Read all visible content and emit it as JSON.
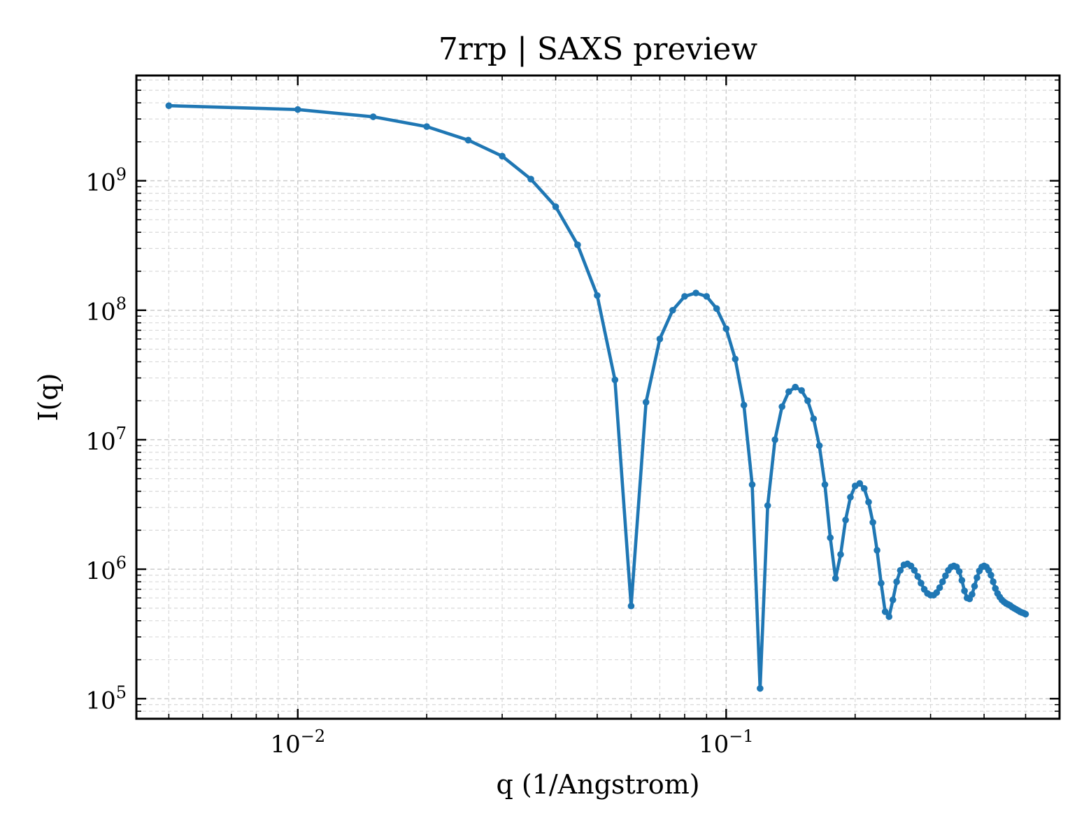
{
  "chart_data": {
    "type": "line",
    "title": "7rrp | SAXS preview",
    "xlabel": "q (1/Angstrom)",
    "ylabel": "I(q)",
    "xscale": "log",
    "yscale": "log",
    "xlim": [
      0.0042,
      0.6
    ],
    "ylim": [
      70000,
      6500000000
    ],
    "grid": true,
    "legend": "none",
    "line_color": "#1f77b4",
    "x_ticks": [
      {
        "value": 0.01,
        "base": "10",
        "exp": "−2"
      },
      {
        "value": 0.1,
        "base": "10",
        "exp": "−1"
      }
    ],
    "y_ticks": [
      {
        "value": 100000,
        "base": "10",
        "exp": "5"
      },
      {
        "value": 1000000,
        "base": "10",
        "exp": "6"
      },
      {
        "value": 10000000,
        "base": "10",
        "exp": "7"
      },
      {
        "value": 100000000,
        "base": "10",
        "exp": "8"
      },
      {
        "value": 1000000000,
        "base": "10",
        "exp": "9"
      }
    ],
    "series": [
      {
        "x": [
          0.005,
          0.01,
          0.015,
          0.02,
          0.025,
          0.03,
          0.035,
          0.04,
          0.045,
          0.05,
          0.055,
          0.06,
          0.065,
          0.07,
          0.075,
          0.08,
          0.085,
          0.09,
          0.095,
          0.1,
          0.105,
          0.11,
          0.115,
          0.12,
          0.125,
          0.13,
          0.135,
          0.14,
          0.145,
          0.15,
          0.155,
          0.16,
          0.165,
          0.17,
          0.175,
          0.18,
          0.185,
          0.19,
          0.195,
          0.2,
          0.205,
          0.21,
          0.215,
          0.22,
          0.225,
          0.23,
          0.235,
          0.24,
          0.245,
          0.25,
          0.255,
          0.26,
          0.265,
          0.27,
          0.275,
          0.28,
          0.285,
          0.29,
          0.295,
          0.3,
          0.305,
          0.31,
          0.315,
          0.32,
          0.325,
          0.33,
          0.335,
          0.34,
          0.345,
          0.35,
          0.355,
          0.36,
          0.365,
          0.37,
          0.375,
          0.38,
          0.385,
          0.39,
          0.395,
          0.4,
          0.405,
          0.41,
          0.415,
          0.42,
          0.425,
          0.43,
          0.435,
          0.44,
          0.445,
          0.45,
          0.455,
          0.46,
          0.465,
          0.47,
          0.475,
          0.48,
          0.485,
          0.49,
          0.495,
          0.5
        ],
        "values": [
          3800000000,
          3550000000,
          3120000000,
          2620000000,
          2060000000,
          1550000000,
          1030000000,
          630000000,
          320000000,
          130000000,
          29000000,
          520000,
          19500000,
          60000000,
          100000000,
          128000000,
          136000000,
          128000000,
          103000000,
          72000000,
          42000000,
          18500000,
          4500000,
          120000,
          3100000,
          10000000,
          18000000,
          23500000,
          25500000,
          24000000,
          20000000,
          14500000,
          9000000,
          4500000,
          1750000,
          850000,
          1300000,
          2400000,
          3600000,
          4400000,
          4600000,
          4200000,
          3300000,
          2300000,
          1400000,
          780000,
          470000,
          430000,
          580000,
          800000,
          980000,
          1080000,
          1100000,
          1060000,
          980000,
          880000,
          780000,
          700000,
          650000,
          630000,
          630000,
          660000,
          720000,
          800000,
          890000,
          980000,
          1040000,
          1060000,
          1040000,
          960000,
          820000,
          680000,
          600000,
          590000,
          640000,
          740000,
          860000,
          970000,
          1040000,
          1060000,
          1040000,
          980000,
          900000,
          800000,
          710000,
          650000,
          610000,
          580000,
          560000,
          545000,
          535000,
          525000,
          510000,
          500000,
          490000,
          480000,
          470000,
          463000,
          458000,
          450000
        ]
      }
    ]
  }
}
